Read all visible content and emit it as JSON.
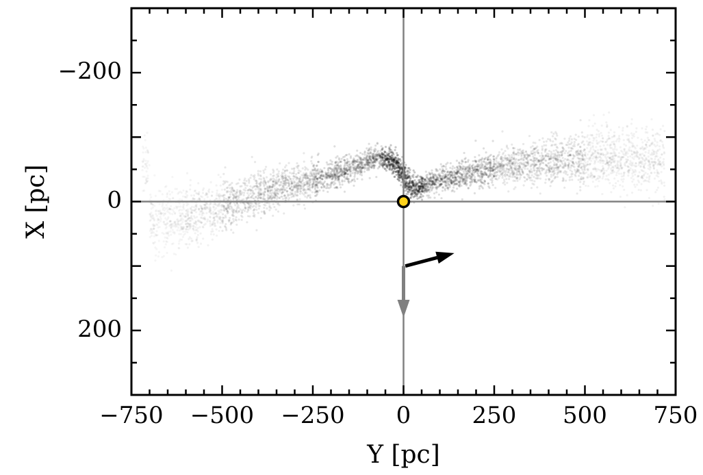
{
  "chart_data": {
    "type": "scatter",
    "title": "",
    "xlabel": "Y [pc]",
    "ylabel": "X [pc]",
    "xlim": [
      -750,
      750
    ],
    "ylim": [
      -300,
      300
    ],
    "y_axis_inverted": true,
    "grid": false,
    "x_ticks": [
      -750,
      -500,
      -250,
      0,
      250,
      500,
      750
    ],
    "x_tick_labels": [
      "−750",
      "−500",
      "−250",
      "0",
      "250",
      "500",
      "750"
    ],
    "y_ticks": [
      -200,
      0,
      200
    ],
    "y_tick_labels": [
      "−200",
      "0",
      "200"
    ],
    "reference_lines": {
      "x": 0,
      "y": 0,
      "color": "#808080"
    },
    "sun_marker": {
      "y": 0,
      "x": 0,
      "fill": "#ffd21a",
      "stroke": "#000000"
    },
    "arrows": [
      {
        "name": "velocity",
        "from": [
          5,
          100
        ],
        "to": [
          140,
          80
        ],
        "color": "#000000"
      },
      {
        "name": "direction",
        "from": [
          0,
          100
        ],
        "to": [
          0,
          180
        ],
        "color": "#808080"
      }
    ],
    "stream_spine": [
      {
        "y": -700,
        "x": 30
      },
      {
        "y": -600,
        "x": 22
      },
      {
        "y": -500,
        "x": 8
      },
      {
        "y": -400,
        "x": -12
      },
      {
        "y": -300,
        "x": -28
      },
      {
        "y": -200,
        "x": -40
      },
      {
        "y": -120,
        "x": -55
      },
      {
        "y": -70,
        "x": -70
      },
      {
        "y": -25,
        "x": -60
      },
      {
        "y": 0,
        "x": -40
      },
      {
        "y": 30,
        "x": -20
      },
      {
        "y": 80,
        "x": -30
      },
      {
        "y": 150,
        "x": -40
      },
      {
        "y": 250,
        "x": -52
      },
      {
        "y": 350,
        "x": -60
      },
      {
        "y": 450,
        "x": -66
      },
      {
        "y": 550,
        "x": -68
      },
      {
        "y": 650,
        "x": -65
      },
      {
        "y": 720,
        "x": -62
      }
    ],
    "points_color": "#000000"
  }
}
